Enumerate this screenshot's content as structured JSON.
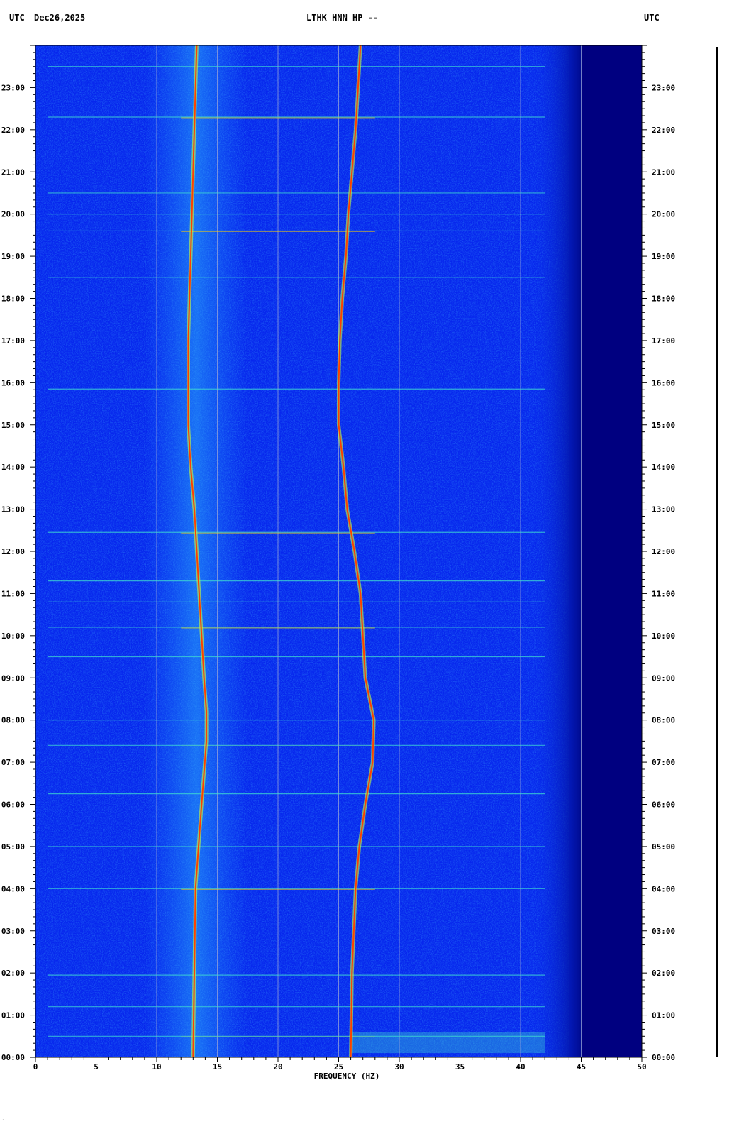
{
  "header": {
    "left_tz": "UTC",
    "date": "Dec26,2025",
    "station": "LTHK HNN HP --",
    "right_tz": "UTC"
  },
  "chart_data": {
    "type": "heatmap",
    "title": "LTHK HNN HP --",
    "xlabel": "FREQUENCY (HZ)",
    "ylabel": "UTC",
    "xlim": [
      0,
      50
    ],
    "ylim_hours": [
      0,
      24
    ],
    "x_ticks": [
      0,
      5,
      10,
      15,
      20,
      25,
      30,
      35,
      40,
      45,
      50
    ],
    "y_tick_labels": [
      "00:00",
      "01:00",
      "02:00",
      "03:00",
      "04:00",
      "05:00",
      "06:00",
      "07:00",
      "08:00",
      "09:00",
      "10:00",
      "11:00",
      "12:00",
      "13:00",
      "14:00",
      "15:00",
      "16:00",
      "17:00",
      "18:00",
      "19:00",
      "20:00",
      "21:00",
      "22:00",
      "23:00"
    ],
    "grid": true,
    "colormap": [
      "#000080",
      "#0000cc",
      "#0a3cff",
      "#1aa0ff",
      "#40e0d0",
      "#c8ff3c",
      "#ffd000",
      "#ff4000",
      "#a00000"
    ],
    "energy_cutoff_hz": 45,
    "traces": [
      {
        "name": "",
        "points": [
          [
            0,
            13.0
          ],
          [
            2,
            13.1
          ],
          [
            4,
            13.2
          ],
          [
            6,
            13.7
          ],
          [
            7.5,
            14.1
          ],
          [
            8.2,
            14.1
          ],
          [
            9,
            13.9
          ],
          [
            11,
            13.5
          ],
          [
            13,
            13.1
          ],
          [
            14,
            12.8
          ],
          [
            15,
            12.6
          ],
          [
            16,
            12.6
          ],
          [
            17,
            12.6
          ],
          [
            18,
            12.7
          ],
          [
            19,
            12.8
          ],
          [
            20,
            12.9
          ],
          [
            21,
            13.0
          ],
          [
            22,
            13.1
          ],
          [
            23,
            13.2
          ],
          [
            24,
            13.3
          ]
        ]
      },
      {
        "name": "",
        "points": [
          [
            0,
            26.0
          ],
          [
            2,
            26.1
          ],
          [
            4,
            26.4
          ],
          [
            5,
            26.7
          ],
          [
            6,
            27.2
          ],
          [
            7,
            27.8
          ],
          [
            8,
            27.9
          ],
          [
            9,
            27.2
          ],
          [
            10,
            27.0
          ],
          [
            11,
            26.8
          ],
          [
            12,
            26.3
          ],
          [
            13,
            25.7
          ],
          [
            14,
            25.4
          ],
          [
            15,
            25.0
          ],
          [
            16,
            25.0
          ],
          [
            17,
            25.1
          ],
          [
            18,
            25.3
          ],
          [
            19,
            25.6
          ],
          [
            20,
            25.8
          ],
          [
            21,
            26.1
          ],
          [
            22,
            26.4
          ],
          [
            23,
            26.6
          ],
          [
            24,
            26.8
          ]
        ]
      }
    ],
    "horizontal_events_hours": [
      0.5,
      1.2,
      1.95,
      4.0,
      5.0,
      6.25,
      7.4,
      8.0,
      9.5,
      10.2,
      10.8,
      11.3,
      12.45,
      15.85,
      18.5,
      19.6,
      20.0,
      20.5,
      22.3,
      23.5
    ]
  }
}
